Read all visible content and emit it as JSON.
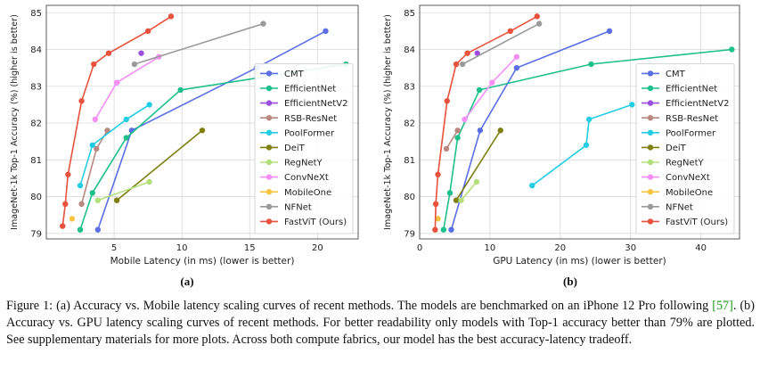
{
  "panel_labels": [
    "(a)",
    "(b)"
  ],
  "caption": {
    "part1": "Figure 1: (a) Accuracy vs. Mobile latency scaling curves of recent methods. The models are benchmarked on an iPhone 12 Pro following ",
    "cite_open": "[",
    "cite_num": "57",
    "cite_close": "]",
    "part2": ". (b) Accuracy vs. GPU latency scaling curves of recent methods. For better readability only models with Top-1 accuracy better than 79% are plotted. See supplementary materials for more plots. Across both compute fabrics, our model has the best accuracy-latency tradeoff."
  },
  "chart_data": [
    {
      "type": "line",
      "panel": "(a)",
      "xlabel": "Mobile Latency (in ms) (lower is better)",
      "ylabel": "ImageNet-1k Top-1 Accuracy (%) (higher is better)",
      "xlim": [
        0,
        23
      ],
      "ylim": [
        78.85,
        85.2
      ],
      "xticks": [
        5,
        10,
        15,
        20
      ],
      "yticks": [
        79,
        80,
        81,
        82,
        83,
        84,
        85
      ],
      "grid": true,
      "legend_position": "right-bottom",
      "series": [
        {
          "name": "CMT",
          "color": "#5a6fe6",
          "points": [
            [
              3.8,
              79.1
            ],
            [
              6.3,
              81.8
            ],
            [
              15.5,
              83.5
            ],
            [
              20.6,
              84.5
            ]
          ]
        },
        {
          "name": "EfficientNet",
          "color": "#1dbf8a",
          "points": [
            [
              2.5,
              79.1
            ],
            [
              3.4,
              80.1
            ],
            [
              5.9,
              81.6
            ],
            [
              9.9,
              82.9
            ],
            [
              22.1,
              83.6
            ]
          ]
        },
        {
          "name": "EfficientNetV2",
          "color": "#9b4fe0",
          "points": [
            [
              7.0,
              83.9
            ]
          ]
        },
        {
          "name": "RSB-ResNet",
          "color": "#b98880",
          "points": [
            [
              2.6,
              79.8
            ],
            [
              3.7,
              81.3
            ],
            [
              4.5,
              81.8
            ]
          ]
        },
        {
          "name": "PoolFormer",
          "color": "#22cde4",
          "points": [
            [
              2.5,
              80.3
            ],
            [
              3.4,
              81.4
            ],
            [
              5.9,
              82.1
            ],
            [
              7.6,
              82.5
            ]
          ]
        },
        {
          "name": "DeiT",
          "color": "#7f7f10",
          "points": [
            [
              5.2,
              79.9
            ],
            [
              11.5,
              81.8
            ]
          ]
        },
        {
          "name": "RegNetY",
          "color": "#b3e07a",
          "points": [
            [
              3.8,
              79.9
            ],
            [
              7.6,
              80.4
            ]
          ]
        },
        {
          "name": "ConvNeXt",
          "color": "#f58ef5",
          "points": [
            [
              3.6,
              82.1
            ],
            [
              5.2,
              83.1
            ],
            [
              8.3,
              83.8
            ]
          ]
        },
        {
          "name": "MobileOne",
          "color": "#f5c542",
          "points": [
            [
              1.9,
              79.4
            ]
          ]
        },
        {
          "name": "NFNet",
          "color": "#9a9a9a",
          "points": [
            [
              6.5,
              83.6
            ],
            [
              16.0,
              84.7
            ]
          ]
        },
        {
          "name": "FastViT (Ours)",
          "color": "#e8513b",
          "points": [
            [
              1.2,
              79.2
            ],
            [
              1.4,
              79.8
            ],
            [
              1.6,
              80.6
            ],
            [
              2.6,
              82.6
            ],
            [
              3.5,
              83.6
            ],
            [
              4.6,
              83.9
            ],
            [
              7.5,
              84.5
            ],
            [
              9.2,
              84.9
            ]
          ]
        }
      ]
    },
    {
      "type": "line",
      "panel": "(b)",
      "xlabel": "GPU Latency (in ms) (lower is better)",
      "ylabel": "ImageNet-1k Top-1 Accuracy (%) (higher is better)",
      "xlim": [
        0,
        45.5
      ],
      "ylim": [
        78.85,
        85.2
      ],
      "xticks": [
        0,
        10,
        20,
        30,
        40
      ],
      "yticks": [
        79,
        80,
        81,
        82,
        83,
        84,
        85
      ],
      "grid": true,
      "legend_position": "right-bottom",
      "series": [
        {
          "name": "CMT",
          "color": "#5a6fe6",
          "points": [
            [
              4.5,
              79.1
            ],
            [
              8.6,
              81.8
            ],
            [
              13.8,
              83.5
            ],
            [
              27.0,
              84.5
            ]
          ]
        },
        {
          "name": "EfficientNet",
          "color": "#1dbf8a",
          "points": [
            [
              3.4,
              79.1
            ],
            [
              4.3,
              80.1
            ],
            [
              5.4,
              81.6
            ],
            [
              8.5,
              82.9
            ],
            [
              24.4,
              83.6
            ],
            [
              44.4,
              84.0
            ]
          ]
        },
        {
          "name": "EfficientNetV2",
          "color": "#9b4fe0",
          "points": [
            [
              8.2,
              83.9
            ]
          ]
        },
        {
          "name": "RSB-ResNet",
          "color": "#b98880",
          "points": [
            [
              3.8,
              81.3
            ],
            [
              5.4,
              81.8
            ]
          ]
        },
        {
          "name": "PoolFormer",
          "color": "#22cde4",
          "points": [
            [
              16.0,
              80.3
            ],
            [
              23.7,
              81.4
            ],
            [
              24.1,
              82.1
            ],
            [
              30.2,
              82.5
            ]
          ]
        },
        {
          "name": "DeiT",
          "color": "#7f7f10",
          "points": [
            [
              5.2,
              79.9
            ],
            [
              11.5,
              81.8
            ]
          ]
        },
        {
          "name": "RegNetY",
          "color": "#b3e07a",
          "points": [
            [
              5.9,
              79.9
            ],
            [
              8.1,
              80.4
            ]
          ]
        },
        {
          "name": "ConvNeXt",
          "color": "#f58ef5",
          "points": [
            [
              6.4,
              82.1
            ],
            [
              10.3,
              83.1
            ],
            [
              13.8,
              83.8
            ]
          ]
        },
        {
          "name": "MobileOne",
          "color": "#f5c542",
          "points": [
            [
              2.6,
              79.4
            ]
          ]
        },
        {
          "name": "NFNet",
          "color": "#9a9a9a",
          "points": [
            [
              6.1,
              83.6
            ],
            [
              17.0,
              84.7
            ]
          ]
        },
        {
          "name": "FastViT (Ours)",
          "color": "#e8513b",
          "points": [
            [
              2.2,
              79.1
            ],
            [
              2.3,
              79.8
            ],
            [
              2.6,
              80.6
            ],
            [
              3.9,
              82.6
            ],
            [
              5.2,
              83.6
            ],
            [
              6.8,
              83.9
            ],
            [
              12.9,
              84.5
            ],
            [
              16.7,
              84.9
            ]
          ]
        }
      ]
    }
  ]
}
